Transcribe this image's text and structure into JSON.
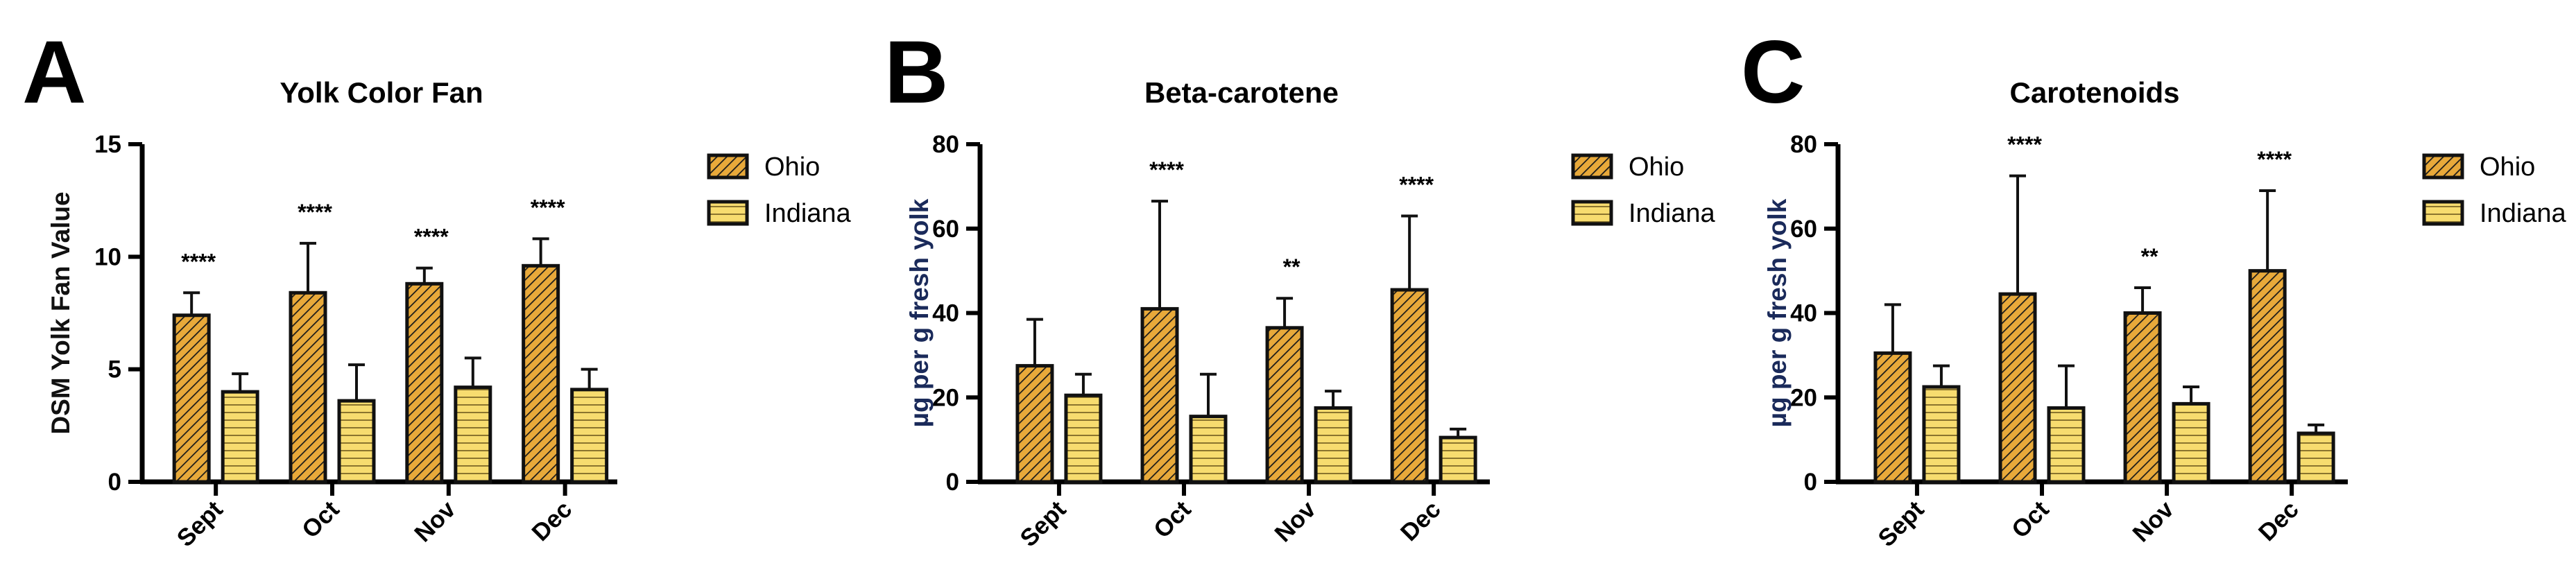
{
  "colors": {
    "ohio_fill": "#E8A93A",
    "indiana_fill": "#F7DC6F",
    "stroke": "#111111",
    "ylabel_color_B_C": "#1a2a5a"
  },
  "legend": [
    "Ohio",
    "Indiana"
  ],
  "chart_data": [
    {
      "panel": "A",
      "type": "bar",
      "title": "Yolk Color Fan",
      "ylabel": "DSM Yolk Fan Value",
      "xlabel": "",
      "ylim": [
        0,
        15
      ],
      "yticks": [
        0,
        5,
        10,
        15
      ],
      "categories": [
        "Sept",
        "Oct",
        "Nov",
        "Dec"
      ],
      "series": [
        {
          "name": "Ohio",
          "values": [
            7.4,
            8.4,
            8.8,
            9.6
          ],
          "errors": [
            1.0,
            2.2,
            0.7,
            1.2
          ]
        },
        {
          "name": "Indiana",
          "values": [
            4.0,
            3.6,
            4.2,
            4.1
          ],
          "errors": [
            0.8,
            1.6,
            1.3,
            0.9
          ]
        }
      ],
      "significance": [
        "****",
        "****",
        "****",
        "****"
      ],
      "legend_position": "right"
    },
    {
      "panel": "B",
      "type": "bar",
      "title": "Beta-carotene",
      "ylabel": "µg per g fresh yolk",
      "xlabel": "",
      "ylim": [
        0,
        80
      ],
      "yticks": [
        0,
        20,
        40,
        60,
        80
      ],
      "categories": [
        "Sept",
        "Oct",
        "Nov",
        "Dec"
      ],
      "series": [
        {
          "name": "Ohio",
          "values": [
            27.5,
            41,
            36.5,
            45.5
          ],
          "errors": [
            11,
            25.5,
            7,
            17.5
          ]
        },
        {
          "name": "Indiana",
          "values": [
            20.5,
            15.5,
            17.5,
            10.5
          ],
          "errors": [
            5,
            10,
            4,
            2
          ]
        }
      ],
      "significance": [
        "",
        "****",
        "**",
        "****"
      ],
      "legend_position": "right"
    },
    {
      "panel": "C",
      "type": "bar",
      "title": "Carotenoids",
      "ylabel": "µg per g fresh yolk",
      "xlabel": "",
      "ylim": [
        0,
        80
      ],
      "yticks": [
        0,
        20,
        40,
        60,
        80
      ],
      "categories": [
        "Sept",
        "Oct",
        "Nov",
        "Dec"
      ],
      "series": [
        {
          "name": "Ohio",
          "values": [
            30.5,
            44.5,
            40,
            50
          ],
          "errors": [
            11.5,
            28,
            6,
            19
          ]
        },
        {
          "name": "Indiana",
          "values": [
            22.5,
            17.5,
            18.5,
            11.5
          ],
          "errors": [
            5,
            10,
            4,
            2
          ]
        }
      ],
      "significance": [
        "",
        "****",
        "**",
        "****"
      ],
      "legend_position": "right"
    }
  ]
}
